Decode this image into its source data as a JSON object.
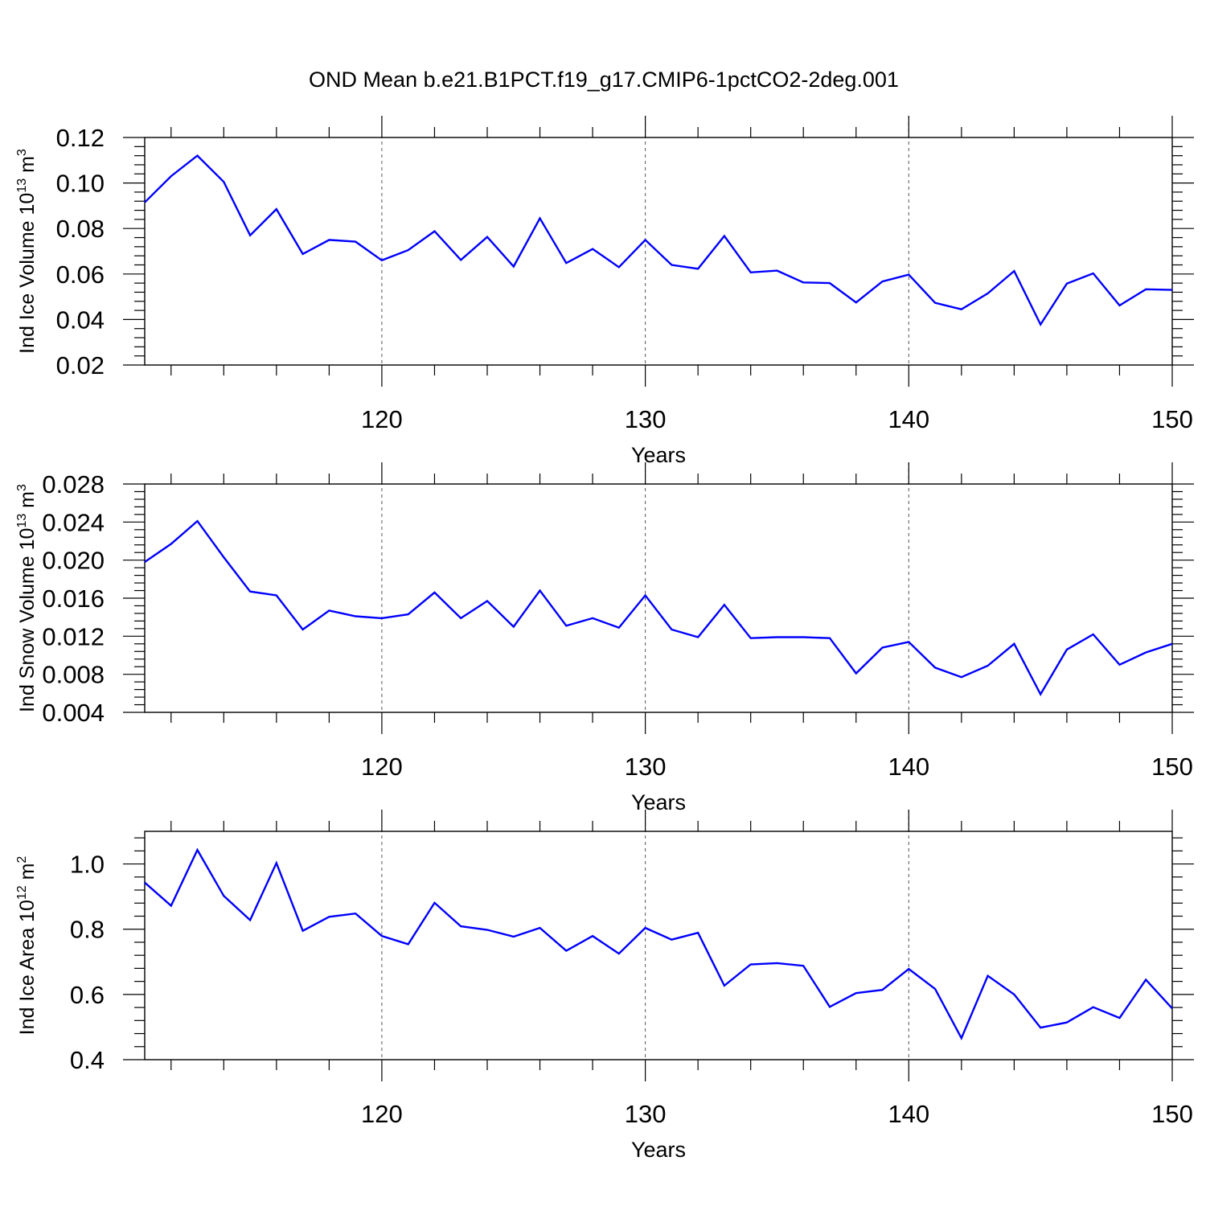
{
  "figure_title": "OND Mean b.e21.B1PCT.f19_g17.CMIP6-1pctCO2-2deg.001",
  "colors": {
    "series": "#0000ff",
    "axes": "#000000",
    "grid": "#555555"
  },
  "chart_data": [
    {
      "type": "line",
      "xlabel": "Years",
      "ylabel_main": "Ind Ice Volume 10",
      "ylabel_exp": "13",
      "ylabel_unit": " m",
      "ylabel_unit_exp": "3",
      "xlim": [
        111,
        150
      ],
      "ylim": [
        0.02,
        0.12
      ],
      "yticks": [
        "0.02",
        "0.04",
        "0.06",
        "0.08",
        "0.10",
        "0.12"
      ],
      "xticks": [
        "120",
        "130",
        "140",
        "150"
      ],
      "grid_x": [
        120,
        130,
        140
      ],
      "x": [
        111,
        112,
        113,
        114,
        115,
        116,
        117,
        118,
        119,
        120,
        121,
        122,
        123,
        124,
        125,
        126,
        127,
        128,
        129,
        130,
        131,
        132,
        133,
        134,
        135,
        136,
        137,
        138,
        139,
        140,
        141,
        142,
        143,
        144,
        145,
        146,
        147,
        148,
        149,
        150
      ],
      "values": [
        0.0915,
        0.103,
        0.112,
        0.1005,
        0.077,
        0.0885,
        0.0688,
        0.075,
        0.0742,
        0.066,
        0.0705,
        0.0788,
        0.0662,
        0.0763,
        0.0633,
        0.0845,
        0.0648,
        0.071,
        0.063,
        0.075,
        0.064,
        0.0623,
        0.0767,
        0.0607,
        0.0615,
        0.0563,
        0.056,
        0.0475,
        0.0567,
        0.0597,
        0.0473,
        0.0445,
        0.0515,
        0.0613,
        0.0378,
        0.0558,
        0.0603,
        0.0462,
        0.0533,
        0.053
      ]
    },
    {
      "type": "line",
      "xlabel": "Years",
      "ylabel_main": "Ind Snow Volume 10",
      "ylabel_exp": "13",
      "ylabel_unit": " m",
      "ylabel_unit_exp": "3",
      "xlim": [
        111,
        150
      ],
      "ylim": [
        0.004,
        0.028
      ],
      "yticks": [
        "0.004",
        "0.008",
        "0.012",
        "0.016",
        "0.020",
        "0.024",
        "0.028"
      ],
      "xticks": [
        "120",
        "130",
        "140",
        "150"
      ],
      "grid_x": [
        120,
        130,
        140
      ],
      "x": [
        111,
        112,
        113,
        114,
        115,
        116,
        117,
        118,
        119,
        120,
        121,
        122,
        123,
        124,
        125,
        126,
        127,
        128,
        129,
        130,
        131,
        132,
        133,
        134,
        135,
        136,
        137,
        138,
        139,
        140,
        141,
        142,
        143,
        144,
        145,
        146,
        147,
        148,
        149,
        150
      ],
      "values": [
        0.0198,
        0.0217,
        0.0241,
        0.0203,
        0.0167,
        0.0163,
        0.0127,
        0.0147,
        0.0141,
        0.0139,
        0.0143,
        0.0166,
        0.0139,
        0.0157,
        0.013,
        0.0168,
        0.0131,
        0.0139,
        0.0129,
        0.0163,
        0.0127,
        0.0119,
        0.0153,
        0.0118,
        0.0119,
        0.0119,
        0.0118,
        0.0081,
        0.0108,
        0.0114,
        0.0087,
        0.0077,
        0.0089,
        0.0112,
        0.0059,
        0.0106,
        0.0122,
        0.009,
        0.0103,
        0.0112
      ]
    },
    {
      "type": "line",
      "xlabel": "Years",
      "ylabel_main": "Ind Ice Area 10",
      "ylabel_exp": "12",
      "ylabel_unit": " m",
      "ylabel_unit_exp": "2",
      "xlim": [
        111,
        150
      ],
      "ylim": [
        0.4,
        1.1
      ],
      "yticks": [
        "0.4",
        "0.6",
        "0.8",
        "1.0"
      ],
      "xticks": [
        "120",
        "130",
        "140",
        "150"
      ],
      "grid_x": [
        120,
        130,
        140
      ],
      "x": [
        111,
        112,
        113,
        114,
        115,
        116,
        117,
        118,
        119,
        120,
        121,
        122,
        123,
        124,
        125,
        126,
        127,
        128,
        129,
        130,
        131,
        132,
        133,
        134,
        135,
        136,
        137,
        138,
        139,
        140,
        141,
        142,
        143,
        144,
        145,
        146,
        147,
        148,
        149,
        150
      ],
      "values": [
        0.943,
        0.872,
        1.043,
        0.902,
        0.828,
        1.003,
        0.795,
        0.838,
        0.848,
        0.779,
        0.754,
        0.881,
        0.809,
        0.798,
        0.777,
        0.804,
        0.734,
        0.779,
        0.725,
        0.804,
        0.768,
        0.789,
        0.627,
        0.692,
        0.696,
        0.688,
        0.562,
        0.604,
        0.614,
        0.678,
        0.617,
        0.466,
        0.657,
        0.6,
        0.498,
        0.514,
        0.561,
        0.528,
        0.645,
        0.557
      ]
    }
  ]
}
